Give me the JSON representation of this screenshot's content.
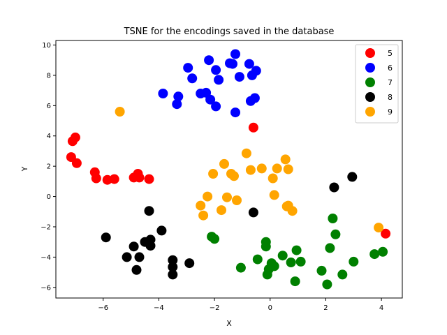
{
  "chart_data": {
    "type": "scatter",
    "title": "TSNE for the encodings saved in the database",
    "xlabel": "X",
    "ylabel": "Y",
    "xlim": [
      -7.7,
      4.75
    ],
    "ylim": [
      -6.7,
      10.3
    ],
    "xticks": [
      -6,
      -4,
      -2,
      0,
      2,
      4
    ],
    "yticks": [
      -6,
      -4,
      -2,
      0,
      2,
      4,
      6,
      8,
      10
    ],
    "grid": false,
    "legend_position": "top-right",
    "series": [
      {
        "name": "5",
        "color": "#ff0000",
        "points": [
          [
            -7.0,
            3.9
          ],
          [
            -7.1,
            3.65
          ],
          [
            -7.15,
            2.6
          ],
          [
            -6.95,
            2.2
          ],
          [
            -6.3,
            1.6
          ],
          [
            -6.25,
            1.2
          ],
          [
            -5.85,
            1.1
          ],
          [
            -5.6,
            1.15
          ],
          [
            -4.9,
            1.25
          ],
          [
            -4.75,
            1.5
          ],
          [
            -4.7,
            1.25
          ],
          [
            -4.35,
            1.15
          ],
          [
            -0.6,
            4.55
          ],
          [
            4.15,
            -2.45
          ]
        ]
      },
      {
        "name": "6",
        "color": "#0000ff",
        "points": [
          [
            -2.2,
            9.0
          ],
          [
            -1.25,
            9.4
          ],
          [
            -1.45,
            8.8
          ],
          [
            -1.35,
            8.75
          ],
          [
            -0.75,
            8.75
          ],
          [
            -0.5,
            8.3
          ],
          [
            -0.65,
            8.0
          ],
          [
            -2.95,
            8.5
          ],
          [
            -2.8,
            7.8
          ],
          [
            -1.95,
            8.35
          ],
          [
            -1.85,
            7.7
          ],
          [
            -1.1,
            7.9
          ],
          [
            -3.85,
            6.8
          ],
          [
            -3.3,
            6.6
          ],
          [
            -3.35,
            6.1
          ],
          [
            -2.5,
            6.8
          ],
          [
            -2.3,
            6.85
          ],
          [
            -2.15,
            6.4
          ],
          [
            -1.95,
            5.95
          ],
          [
            -0.7,
            6.3
          ],
          [
            -0.55,
            6.5
          ],
          [
            -1.25,
            5.55
          ]
        ]
      },
      {
        "name": "7",
        "color": "#008000",
        "points": [
          [
            -2.1,
            -2.65
          ],
          [
            -2.0,
            -2.8
          ],
          [
            -1.05,
            -4.7
          ],
          [
            -0.45,
            -4.15
          ],
          [
            -0.15,
            -3.0
          ],
          [
            -0.15,
            -3.3
          ],
          [
            0.05,
            -4.4
          ],
          [
            0.15,
            -4.6
          ],
          [
            -0.05,
            -4.8
          ],
          [
            -0.1,
            -5.15
          ],
          [
            0.45,
            -3.9
          ],
          [
            0.75,
            -4.35
          ],
          [
            0.95,
            -3.55
          ],
          [
            1.1,
            -4.3
          ],
          [
            0.9,
            -5.6
          ],
          [
            1.85,
            -4.9
          ],
          [
            2.15,
            -3.4
          ],
          [
            2.25,
            -1.45
          ],
          [
            2.35,
            -2.5
          ],
          [
            2.05,
            -5.8
          ],
          [
            2.6,
            -5.15
          ],
          [
            3.0,
            -4.3
          ],
          [
            3.75,
            -3.8
          ],
          [
            4.05,
            -3.65
          ]
        ]
      },
      {
        "name": "8",
        "color": "#000000",
        "points": [
          [
            -5.9,
            -2.7
          ],
          [
            -5.15,
            -4.0
          ],
          [
            -4.9,
            -3.3
          ],
          [
            -4.8,
            -4.85
          ],
          [
            -4.7,
            -4.0
          ],
          [
            -4.5,
            -3.0
          ],
          [
            -4.35,
            -0.95
          ],
          [
            -4.3,
            -2.85
          ],
          [
            -4.3,
            -3.25
          ],
          [
            -3.9,
            -2.25
          ],
          [
            -3.5,
            -4.2
          ],
          [
            -3.5,
            -4.65
          ],
          [
            -3.5,
            -5.15
          ],
          [
            -2.9,
            -4.4
          ],
          [
            -0.6,
            -1.05
          ],
          [
            2.3,
            0.6
          ],
          [
            2.95,
            1.3
          ]
        ]
      },
      {
        "name": "9",
        "color": "#ffa500",
        "points": [
          [
            -5.4,
            5.6
          ],
          [
            -0.85,
            2.85
          ],
          [
            -0.7,
            1.75
          ],
          [
            -0.3,
            1.85
          ],
          [
            -2.05,
            1.5
          ],
          [
            -1.65,
            2.15
          ],
          [
            -1.4,
            1.5
          ],
          [
            -1.3,
            1.35
          ],
          [
            -2.25,
            0.0
          ],
          [
            -1.55,
            -0.05
          ],
          [
            -1.2,
            -0.25
          ],
          [
            -2.5,
            -0.6
          ],
          [
            -2.4,
            -1.25
          ],
          [
            -1.75,
            -0.9
          ],
          [
            0.1,
            1.2
          ],
          [
            0.25,
            1.85
          ],
          [
            0.55,
            2.45
          ],
          [
            0.65,
            1.8
          ],
          [
            0.15,
            0.1
          ],
          [
            0.6,
            -0.65
          ],
          [
            0.65,
            -0.6
          ],
          [
            0.8,
            -0.95
          ],
          [
            3.9,
            -2.05
          ]
        ]
      }
    ]
  }
}
